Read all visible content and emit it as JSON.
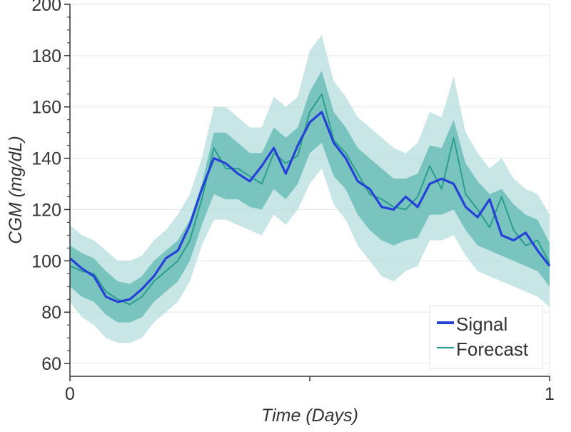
{
  "chart_data": {
    "type": "line",
    "xlabel": "Time (Days)",
    "ylabel": "CGM (mg/dL)",
    "xlim": [
      0,
      1
    ],
    "ylim": [
      55,
      200
    ],
    "x_ticks": [
      0,
      0.5,
      1
    ],
    "x_tick_labels": [
      "0",
      "",
      "1"
    ],
    "y_ticks": [
      60,
      80,
      100,
      120,
      140,
      160,
      180,
      200
    ],
    "y_tick_labels": [
      "60",
      "80",
      "100",
      "120",
      "140",
      "160",
      "180",
      "200"
    ],
    "grid": "horizontal",
    "legend_position": "bottom-right",
    "colors": {
      "signal": "#2541d8",
      "forecast": "#2a9d8f",
      "inner_band": "#5fb8b0",
      "outer_band": "#b5dede",
      "grid": "#e6e6e6",
      "axis": "#333333"
    },
    "x": [
      0.0,
      0.025,
      0.05,
      0.075,
      0.1,
      0.125,
      0.15,
      0.175,
      0.2,
      0.225,
      0.25,
      0.275,
      0.3,
      0.325,
      0.35,
      0.375,
      0.4,
      0.425,
      0.45,
      0.475,
      0.5,
      0.525,
      0.55,
      0.575,
      0.6,
      0.625,
      0.65,
      0.675,
      0.7,
      0.725,
      0.75,
      0.775,
      0.8,
      0.825,
      0.85,
      0.875,
      0.9,
      0.925,
      0.95,
      0.975,
      1.0
    ],
    "series": [
      {
        "name": "Signal",
        "values": [
          101,
          97,
          94,
          86,
          84,
          85,
          89,
          94,
          101,
          104,
          114,
          128,
          140,
          138,
          134,
          131,
          137,
          144,
          134,
          145,
          154,
          158,
          146,
          140,
          131,
          128,
          121,
          120,
          125,
          121,
          130,
          132,
          130,
          121,
          117,
          124,
          110,
          108,
          111,
          104,
          98
        ]
      },
      {
        "name": "Forecast",
        "values": [
          98,
          96,
          95,
          88,
          85,
          83,
          86,
          92,
          96,
          100,
          108,
          124,
          144,
          136,
          136,
          133,
          130,
          142,
          138,
          141,
          158,
          165,
          147,
          142,
          134,
          126,
          124,
          121,
          120,
          125,
          137,
          128,
          148,
          126,
          120,
          113,
          125,
          112,
          106,
          108,
          99
        ]
      }
    ],
    "bands": {
      "inner_lower": [
        90,
        86,
        84,
        79,
        76,
        76,
        78,
        84,
        88,
        92,
        100,
        114,
        126,
        124,
        124,
        121,
        120,
        128,
        124,
        130,
        142,
        146,
        133,
        128,
        118,
        112,
        108,
        106,
        108,
        109,
        118,
        118,
        120,
        112,
        106,
        104,
        102,
        100,
        98,
        96,
        90
      ],
      "inner_upper": [
        106,
        103,
        101,
        96,
        92,
        91,
        94,
        100,
        104,
        108,
        116,
        130,
        150,
        150,
        146,
        142,
        142,
        152,
        148,
        152,
        166,
        174,
        158,
        152,
        144,
        140,
        136,
        132,
        132,
        134,
        145,
        144,
        155,
        138,
        131,
        126,
        128,
        122,
        118,
        116,
        107
      ],
      "outer_lower": [
        84,
        78,
        75,
        70,
        68,
        68,
        70,
        76,
        80,
        84,
        92,
        106,
        116,
        116,
        114,
        112,
        110,
        118,
        114,
        120,
        130,
        136,
        122,
        116,
        106,
        100,
        94,
        92,
        96,
        98,
        108,
        108,
        110,
        102,
        96,
        94,
        92,
        90,
        88,
        86,
        82
      ],
      "outer_upper": [
        114,
        110,
        108,
        104,
        100,
        100,
        102,
        108,
        112,
        118,
        126,
        140,
        160,
        160,
        156,
        152,
        152,
        164,
        160,
        164,
        182,
        188,
        170,
        164,
        156,
        152,
        148,
        144,
        142,
        146,
        158,
        156,
        172,
        150,
        142,
        136,
        140,
        132,
        128,
        126,
        118
      ]
    }
  }
}
